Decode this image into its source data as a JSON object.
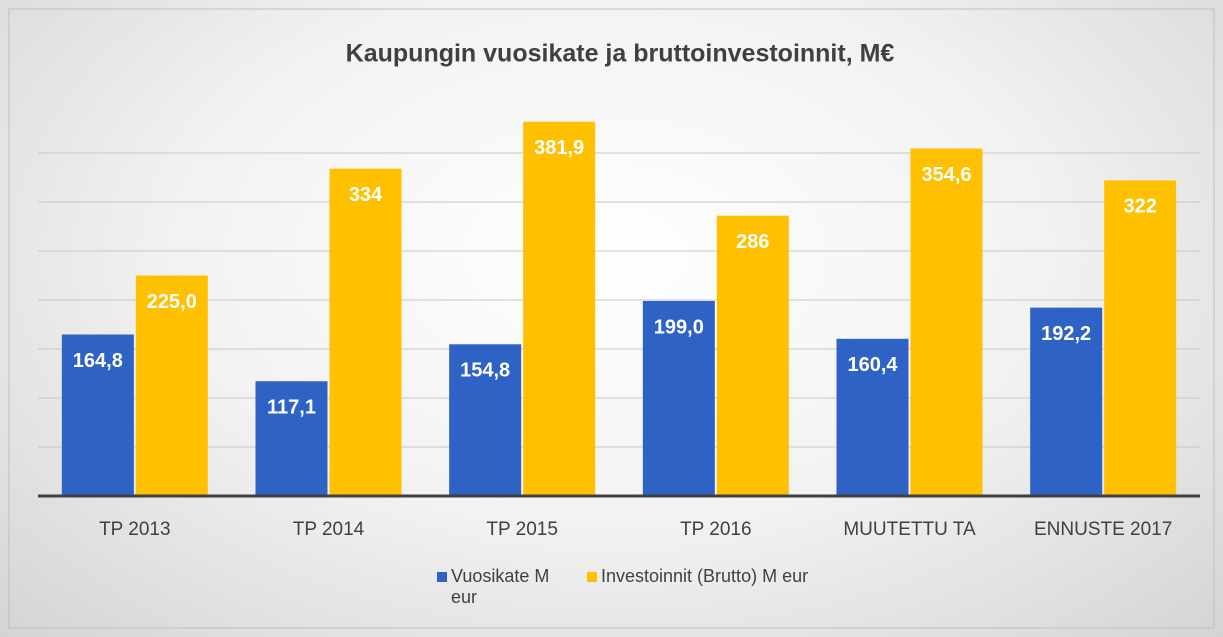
{
  "chart_data": {
    "type": "bar",
    "title": "Kaupungin vuosikate ja bruttoinvestoinnit, M€",
    "categories": [
      "TP 2013",
      "TP 2014",
      "TP 2015",
      "TP 2016",
      "MUUTETTU TA",
      "ENNUSTE 2017"
    ],
    "series": [
      {
        "name": "Vuosikate M eur",
        "color": "#2e62c4",
        "values": [
          164.8,
          117.1,
          154.8,
          199.0,
          160.4,
          192.2
        ],
        "value_labels": [
          "164,8",
          "117,1",
          "154,8",
          "199,0",
          "160,4",
          "192,2"
        ]
      },
      {
        "name": "Investoinnit (Brutto) M eur",
        "color": "#ffc000",
        "values": [
          225.0,
          334,
          381.9,
          286,
          354.6,
          322
        ],
        "value_labels": [
          "225,0",
          "334",
          "381,9",
          "286",
          "354,6",
          "322"
        ]
      }
    ],
    "ylim": [
      0,
      400
    ],
    "yticks": [
      0,
      50,
      100,
      150,
      200,
      250,
      300,
      350
    ],
    "grid": true,
    "legend": "bottom"
  }
}
